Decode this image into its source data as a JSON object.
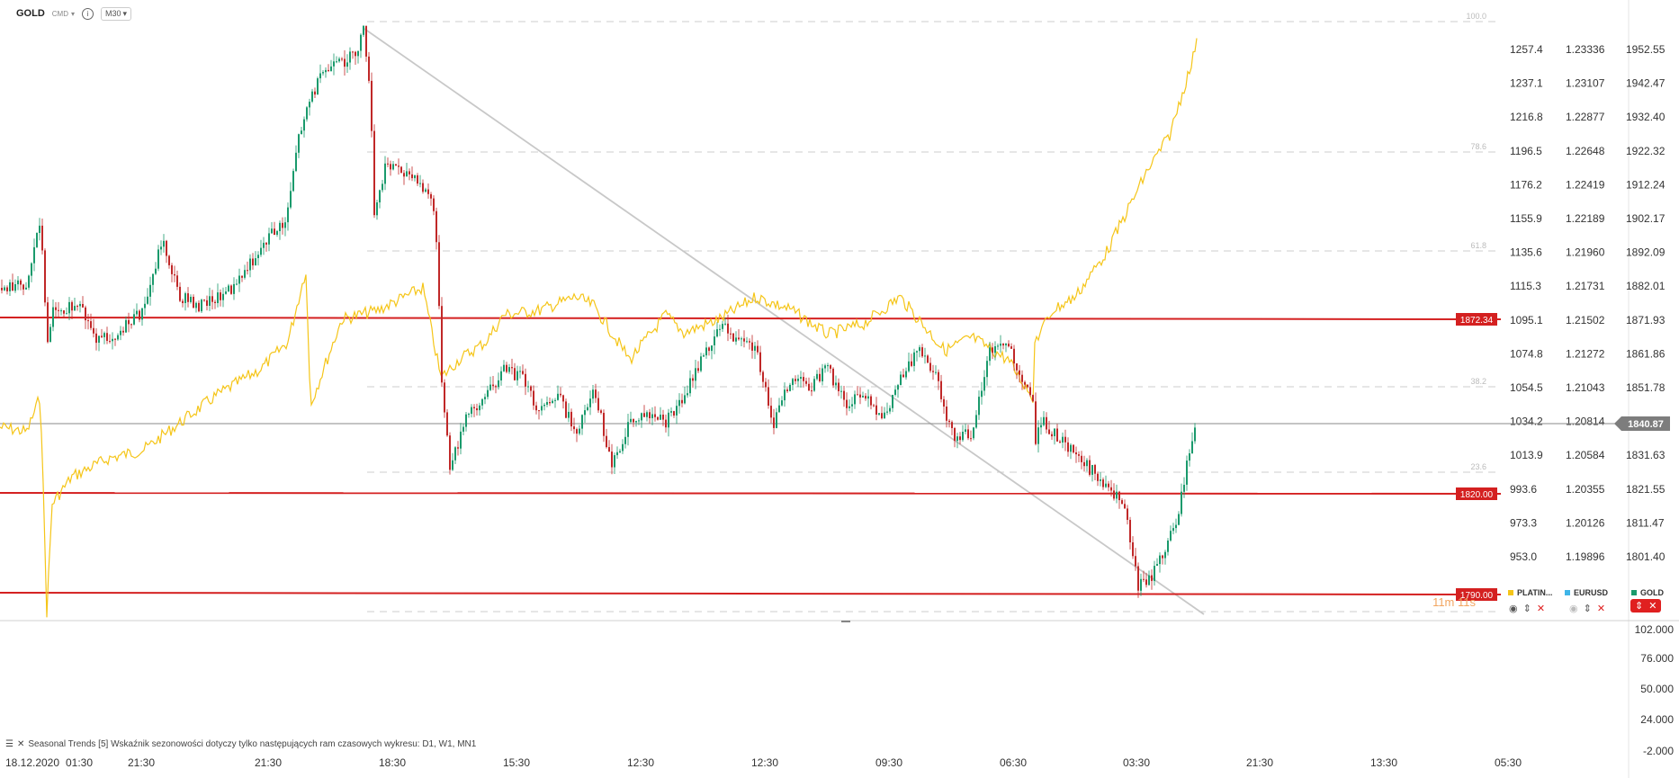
{
  "header": {
    "symbol": "GOLD",
    "type": "CMD",
    "timeframe": "M30"
  },
  "chart_data": {
    "type": "line",
    "x_tick_labels": [
      "18.12.2020",
      "01:30",
      "21:30",
      "21:30",
      "18:30",
      "15:30",
      "12:30",
      "12:30",
      "09:30",
      "06:30",
      "03:30",
      "21:30",
      "13:30",
      "05:30"
    ],
    "y_axis_platinum": [
      "1257.4",
      "1237.1",
      "1216.8",
      "1196.5",
      "1176.2",
      "1155.9",
      "1135.6",
      "1115.3",
      "1095.1",
      "1074.8",
      "1054.5",
      "1034.2",
      "1013.9",
      "993.6",
      "973.3",
      "953.0"
    ],
    "y_axis_eurusd": [
      "1.23336",
      "1.23107",
      "1.22877",
      "1.22648",
      "1.22419",
      "1.22189",
      "1.21960",
      "1.21731",
      "1.21502",
      "1.21272",
      "1.21043",
      "1.20814",
      "1.20584",
      "1.20355",
      "1.20126",
      "1.19896"
    ],
    "y_axis_gold": [
      "1952.55",
      "1942.47",
      "1932.40",
      "1922.32",
      "1912.24",
      "1902.17",
      "1892.09",
      "1882.01",
      "1871.93",
      "1861.86",
      "1851.78",
      "1840.87",
      "1831.63",
      "1821.55",
      "1811.47",
      "1801.40"
    ],
    "current_price": "1840.87",
    "horizontal_levels": [
      "1872.34",
      "1820.00",
      "1790.00"
    ],
    "fib_labels": [
      "100.0",
      "78.6",
      "61.8",
      "38.2",
      "23.6"
    ],
    "countdown": "11m 11s",
    "series": [
      {
        "name": "PLATIN...",
        "color": "#f5c518"
      },
      {
        "name": "EURUSD",
        "color": "#3fb5e8"
      },
      {
        "name": "GOLD",
        "color": "#1a9a6c"
      }
    ],
    "indicator_axis": [
      "102.000",
      "76.000",
      "50.000",
      "24.000",
      "-2.000"
    ]
  },
  "indicator": {
    "text": "Seasonal Trends [5] Wskaźnik sezonowości dotyczy tylko następujących ram czasowych wykresu: D1, W1, MN1"
  }
}
